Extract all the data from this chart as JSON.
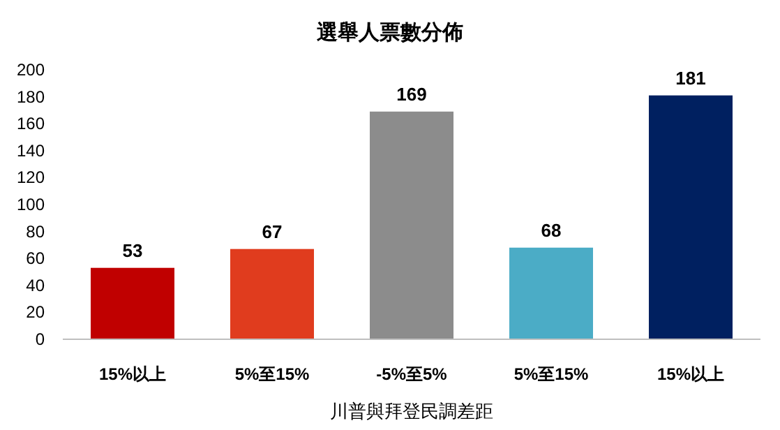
{
  "chart_data": {
    "type": "bar",
    "title": "選舉人票數分佈",
    "xlabel": "川普與拜登民調差距",
    "categories": [
      "15%以上",
      "5%至15%",
      "-5%至5%",
      "5%至15%",
      "15%以上"
    ],
    "values": [
      53,
      67,
      169,
      68,
      181
    ],
    "colors": [
      "#c00000",
      "#e03c1e",
      "#8c8c8c",
      "#4bacc6",
      "#002060"
    ],
    "ylim": [
      0,
      200
    ],
    "yticks": [
      0,
      20,
      40,
      60,
      80,
      100,
      120,
      140,
      160,
      180,
      200
    ],
    "data_labels": true,
    "grid": false
  }
}
